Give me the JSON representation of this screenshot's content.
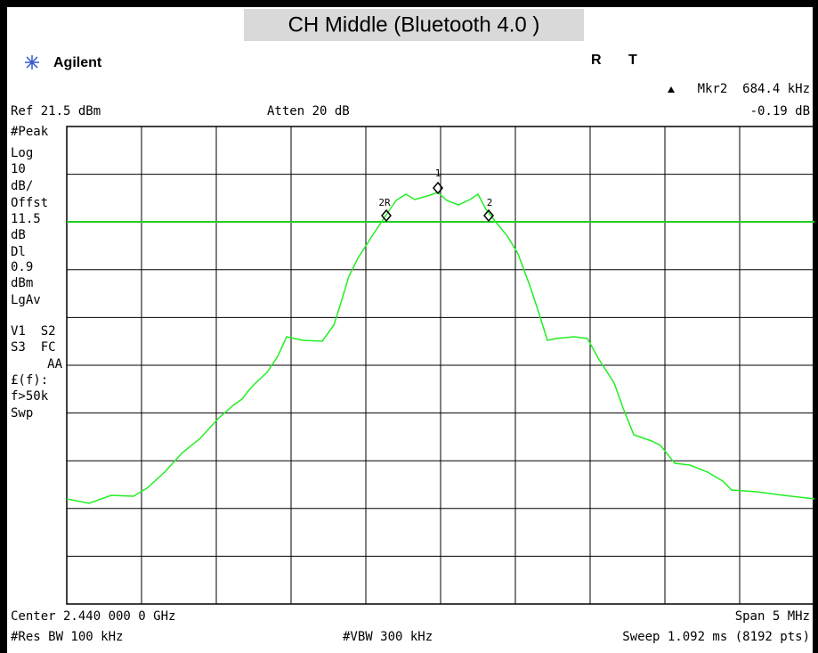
{
  "header": {
    "title": "CH Middle (Bluetooth 4.0 )",
    "brand": "Agilent",
    "status": [
      "R",
      "T"
    ],
    "marker": "Mkr2  684.4 kHz",
    "marker_value": "-0.19 dB",
    "ref": "Ref 21.5 dBm",
    "atten": "Atten 20 dB"
  },
  "side_labels": [
    "#Peak",
    "Log",
    "10",
    "dB/",
    "Offst",
    "11.5",
    "dB",
    "Dl",
    "0.9",
    "dBm",
    "LgAv",
    "V1  S2",
    "S3  FC",
    "AA",
    "£(f):",
    "f>50k",
    "Swp"
  ],
  "markers": [
    "1",
    "2R",
    "2"
  ],
  "footer": {
    "center": "Center 2.440 000 0 GHz",
    "span": "Span 5 MHz",
    "rbw": "#Res BW 100 kHz",
    "vbw": "#VBW 300 kHz",
    "sweep": "Sweep 1.092 ms (8192 pts)"
  }
}
